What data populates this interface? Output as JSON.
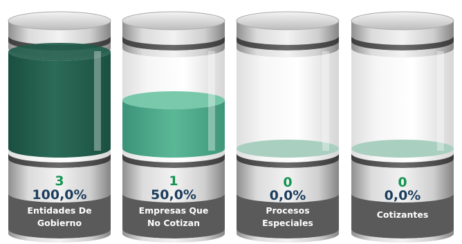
{
  "chart_data": {
    "type": "bar",
    "categories": [
      "Entidades De\nGobierno",
      "Empresas Que\nNo Cotizan",
      "Procesos\nEspeciales",
      "Cotizantes"
    ],
    "counts": [
      "3",
      "1",
      "0",
      "0"
    ],
    "percent_labels": [
      "100,0%",
      "50,0%",
      "0,0%",
      "0,0%"
    ],
    "values": [
      100.0,
      50.0,
      0.0,
      0.0
    ],
    "ylim": [
      0,
      100
    ],
    "colors": {
      "fill_full": "#1f5a48",
      "fill_half": "#44a688",
      "fill_empty": "#a9cfc0",
      "count_text": "#159450",
      "percent_text": "#1c3d5c",
      "label_band": "#5a5a5a"
    }
  }
}
